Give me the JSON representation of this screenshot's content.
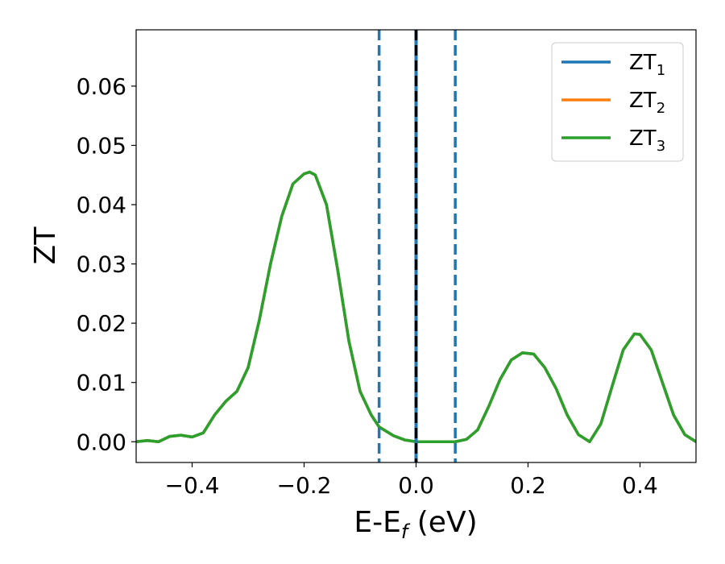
{
  "chart_data": {
    "type": "line",
    "title": "",
    "xlabel": "E-E",
    "xlabel_sub": "f",
    "xlabel_unit": " (eV)",
    "ylabel": "ZT",
    "xlim": [
      -0.5,
      0.5
    ],
    "ylim": [
      -0.0035,
      0.0695
    ],
    "xticks": [
      -0.4,
      -0.2,
      0.0,
      0.2,
      0.4
    ],
    "xtick_labels": [
      "−0.4",
      "−0.2",
      "0.0",
      "0.2",
      "0.4"
    ],
    "yticks": [
      0.0,
      0.01,
      0.02,
      0.03,
      0.04,
      0.05,
      0.06
    ],
    "ytick_labels": [
      "0.00",
      "0.01",
      "0.02",
      "0.03",
      "0.04",
      "0.05",
      "0.06"
    ],
    "grid": false,
    "legend_position": "top-right",
    "x": [
      -0.5,
      -0.48,
      -0.46,
      -0.44,
      -0.42,
      -0.4,
      -0.38,
      -0.36,
      -0.34,
      -0.32,
      -0.3,
      -0.28,
      -0.26,
      -0.24,
      -0.22,
      -0.2,
      -0.19,
      -0.18,
      -0.16,
      -0.14,
      -0.12,
      -0.1,
      -0.08,
      -0.066,
      -0.04,
      -0.02,
      0.0,
      0.02,
      0.04,
      0.07,
      0.09,
      0.11,
      0.13,
      0.15,
      0.17,
      0.19,
      0.21,
      0.23,
      0.25,
      0.27,
      0.29,
      0.31,
      0.33,
      0.35,
      0.37,
      0.39,
      0.4,
      0.42,
      0.44,
      0.46,
      0.48,
      0.5
    ],
    "series": [
      {
        "name": "ZT",
        "sub": "1",
        "color": "#1f77b4",
        "values": [
          0.0,
          0.0002,
          0.0,
          0.0009,
          0.0011,
          0.0008,
          0.0015,
          0.0045,
          0.0068,
          0.0085,
          0.0125,
          0.0205,
          0.03,
          0.038,
          0.0435,
          0.0452,
          0.0455,
          0.045,
          0.04,
          0.029,
          0.017,
          0.0085,
          0.0045,
          0.0025,
          0.001,
          0.0003,
          0.0,
          0.0,
          0.0,
          0.0,
          0.0004,
          0.002,
          0.006,
          0.0105,
          0.0138,
          0.015,
          0.0148,
          0.0125,
          0.009,
          0.0045,
          0.0012,
          0.0,
          0.003,
          0.0093,
          0.0155,
          0.0182,
          0.0181,
          0.0155,
          0.01,
          0.0045,
          0.0012,
          0.0
        ]
      },
      {
        "name": "ZT",
        "sub": "2",
        "color": "#ff7f0e",
        "values": [
          0.0,
          0.0002,
          0.0,
          0.0009,
          0.0011,
          0.0008,
          0.0015,
          0.0045,
          0.0068,
          0.0085,
          0.0125,
          0.0205,
          0.03,
          0.038,
          0.0435,
          0.0452,
          0.0455,
          0.045,
          0.04,
          0.029,
          0.017,
          0.0085,
          0.0045,
          0.0025,
          0.001,
          0.0003,
          0.0,
          0.0,
          0.0,
          0.0,
          0.0004,
          0.002,
          0.006,
          0.0105,
          0.0138,
          0.015,
          0.0148,
          0.0125,
          0.009,
          0.0045,
          0.0012,
          0.0,
          0.003,
          0.0093,
          0.0155,
          0.0182,
          0.0181,
          0.0155,
          0.01,
          0.0045,
          0.0012,
          0.0
        ]
      },
      {
        "name": "ZT",
        "sub": "3",
        "color": "#2ca02c",
        "values": [
          0.0,
          0.0002,
          0.0,
          0.0009,
          0.0011,
          0.0008,
          0.0015,
          0.0045,
          0.0068,
          0.0085,
          0.0125,
          0.0205,
          0.03,
          0.038,
          0.0435,
          0.0452,
          0.0455,
          0.045,
          0.04,
          0.029,
          0.017,
          0.0085,
          0.0045,
          0.0025,
          0.001,
          0.0003,
          0.0,
          0.0,
          0.0,
          0.0,
          0.0004,
          0.002,
          0.006,
          0.0105,
          0.0138,
          0.015,
          0.0148,
          0.0125,
          0.009,
          0.0045,
          0.0012,
          0.0,
          0.003,
          0.0093,
          0.0155,
          0.0182,
          0.0181,
          0.0155,
          0.01,
          0.0045,
          0.0012,
          0.0
        ]
      }
    ],
    "vlines": [
      {
        "x": -0.066,
        "style": "dashed",
        "color": "#1f77b4"
      },
      {
        "x": 0.07,
        "style": "dashed",
        "color": "#1f77b4"
      },
      {
        "x": 0.0,
        "style": "solid",
        "color": "#1f77b4"
      },
      {
        "x": 0.0,
        "style": "dashed",
        "color": "#000000"
      }
    ]
  }
}
